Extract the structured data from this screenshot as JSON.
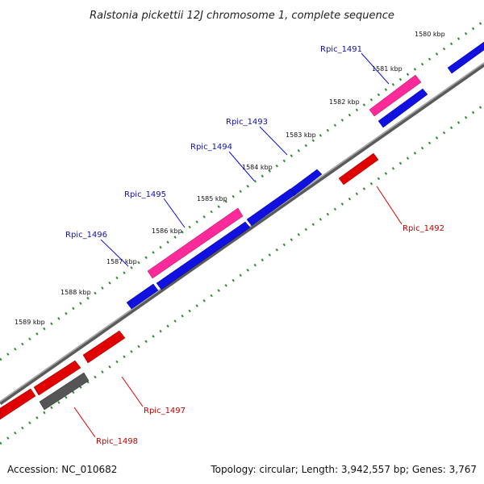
{
  "title": "Ralstonia pickettii 12J chromosome 1, complete sequence",
  "footer": {
    "accession": "Accession: NC_010682",
    "summary": "Topology: circular; Length: 3,942,557 bp; Genes: 3,767"
  },
  "colors": {
    "forward_gene": "#1010e0",
    "reverse_gene": "#e00000",
    "pseudo_gene": "#ff2a9a",
    "other_gene": "#555555",
    "tick": "#2e8b2e",
    "backbone": "#888888"
  },
  "kbp_labels": [
    "1580 kbp",
    "1581 kbp",
    "1582 kbp",
    "1583 kbp",
    "1584 kbp",
    "1585 kbp",
    "1586 kbp",
    "1587 kbp",
    "1588 kbp",
    "1589 kbp"
  ],
  "gene_labels": [
    {
      "text": "Rpic_1491",
      "strand": "forward"
    },
    {
      "text": "Rpic_1492",
      "strand": "reverse"
    },
    {
      "text": "Rpic_1493",
      "strand": "forward"
    },
    {
      "text": "Rpic_1494",
      "strand": "forward"
    },
    {
      "text": "Rpic_1495",
      "strand": "forward"
    },
    {
      "text": "Rpic_1496",
      "strand": "forward"
    },
    {
      "text": "Rpic_1497",
      "strand": "reverse"
    },
    {
      "text": "Rpic_1498",
      "strand": "reverse"
    }
  ]
}
